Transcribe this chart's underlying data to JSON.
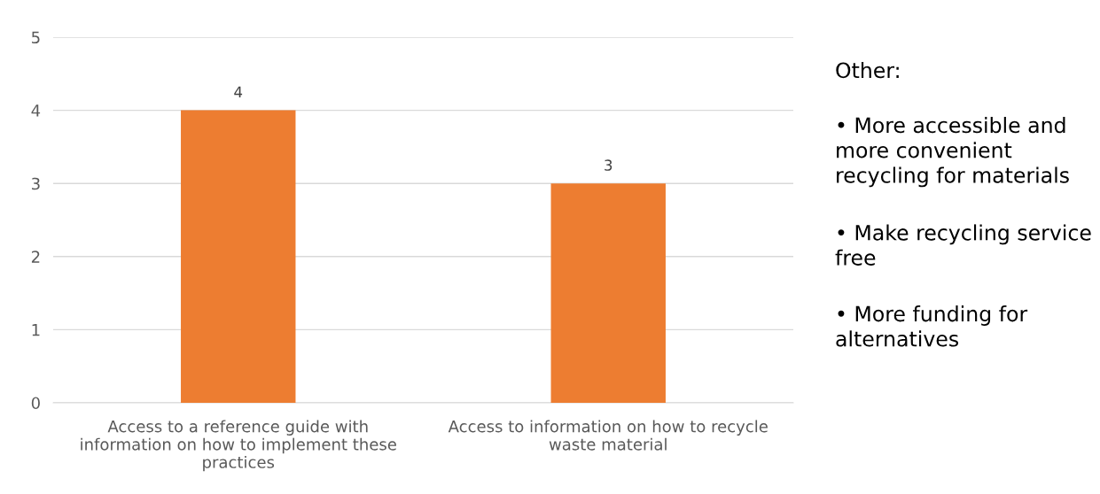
{
  "chart_data": {
    "type": "bar",
    "categories": [
      "Access to a reference guide with information on how to implement these practices",
      "Access to information on how to recycle waste material"
    ],
    "values": [
      4,
      3
    ],
    "color": "#ed7d31",
    "ylim": [
      0,
      5
    ],
    "yticks": [
      0,
      1,
      2,
      3,
      4,
      5
    ],
    "grid": "y",
    "data_labels": true,
    "annotations": [
      "Other:",
      "• More accessible and more convenient recycling for materials",
      "• Make recycling service free",
      "• More funding for alternatives"
    ]
  }
}
